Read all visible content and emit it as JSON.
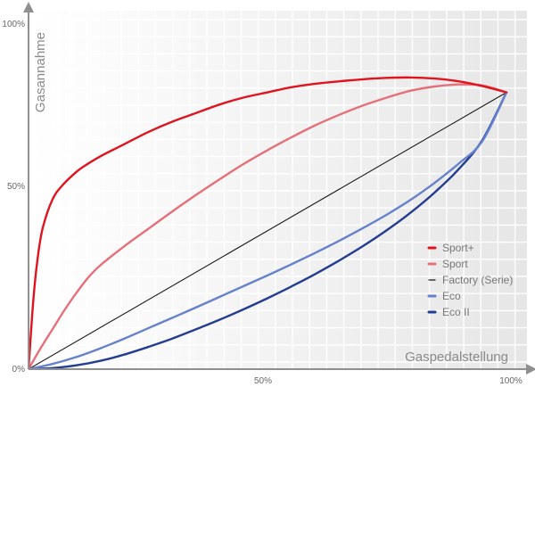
{
  "chart_data": {
    "type": "line",
    "xlabel": "Gaspedalstellung",
    "ylabel": "Gasannahme",
    "x_ticks": [
      "50%",
      "100%"
    ],
    "y_ticks": [
      "0%",
      "50%",
      "100%"
    ],
    "xlim": [
      0,
      100
    ],
    "ylim": [
      0,
      100
    ],
    "grid": true,
    "legend_position": "right",
    "series": [
      {
        "name": "Sport+",
        "color": "#e0141e",
        "x": [
          0,
          1,
          2,
          3,
          5,
          7,
          10,
          12,
          15,
          20,
          25,
          30,
          35,
          40,
          45,
          50,
          55,
          60,
          65,
          70,
          75,
          80,
          85,
          90,
          95,
          100
        ],
        "y": [
          0,
          20,
          33,
          41,
          49,
          53,
          57,
          59,
          61.5,
          65,
          68.5,
          71.5,
          74,
          76.5,
          78.5,
          80,
          81.5,
          82.5,
          83.2,
          83.8,
          84.2,
          84.3,
          84,
          83.2,
          81.8,
          80
        ]
      },
      {
        "name": "Sport",
        "color": "#e6707a",
        "x": [
          0,
          2.5,
          5,
          7.5,
          10,
          12.5,
          15,
          20,
          25,
          30,
          35,
          40,
          45,
          50,
          55,
          60,
          65,
          70,
          75,
          80,
          85,
          90,
          95,
          100
        ],
        "y": [
          0,
          6,
          11.5,
          17,
          22,
          26.5,
          30,
          35.5,
          40.5,
          45.5,
          50.3,
          54.9,
          59.3,
          63.3,
          67,
          70.5,
          73.5,
          76.2,
          78.5,
          80.5,
          81.7,
          82.3,
          82,
          80
        ]
      },
      {
        "name": "Factory (Serie)",
        "color": "#1a1a1a",
        "x": [
          0,
          100
        ],
        "y": [
          0,
          80
        ]
      },
      {
        "name": "Eco",
        "color": "#6682cc",
        "x": [
          0,
          5,
          10,
          15,
          20,
          25,
          30,
          35,
          40,
          45,
          50,
          55,
          60,
          65,
          70,
          75,
          80,
          85,
          90,
          95,
          100
        ],
        "y": [
          0,
          1.5,
          3.5,
          6,
          8.8,
          11.8,
          14.8,
          17.8,
          20.9,
          24,
          27.1,
          30.3,
          33.6,
          37.1,
          40.8,
          44.7,
          49,
          53.9,
          59.4,
          66,
          80
        ]
      },
      {
        "name": "Eco II",
        "color": "#233d91",
        "x": [
          0,
          5,
          10,
          15,
          20,
          25,
          30,
          35,
          40,
          45,
          50,
          55,
          60,
          65,
          70,
          75,
          80,
          85,
          90,
          95,
          100
        ],
        "y": [
          0,
          0.3,
          1.1,
          2.4,
          4.2,
          6.4,
          8.8,
          11.5,
          14.3,
          17.3,
          20.5,
          23.9,
          27.5,
          31.4,
          35.6,
          40.2,
          45.3,
          51.1,
          57.8,
          66.3,
          80
        ]
      }
    ]
  }
}
